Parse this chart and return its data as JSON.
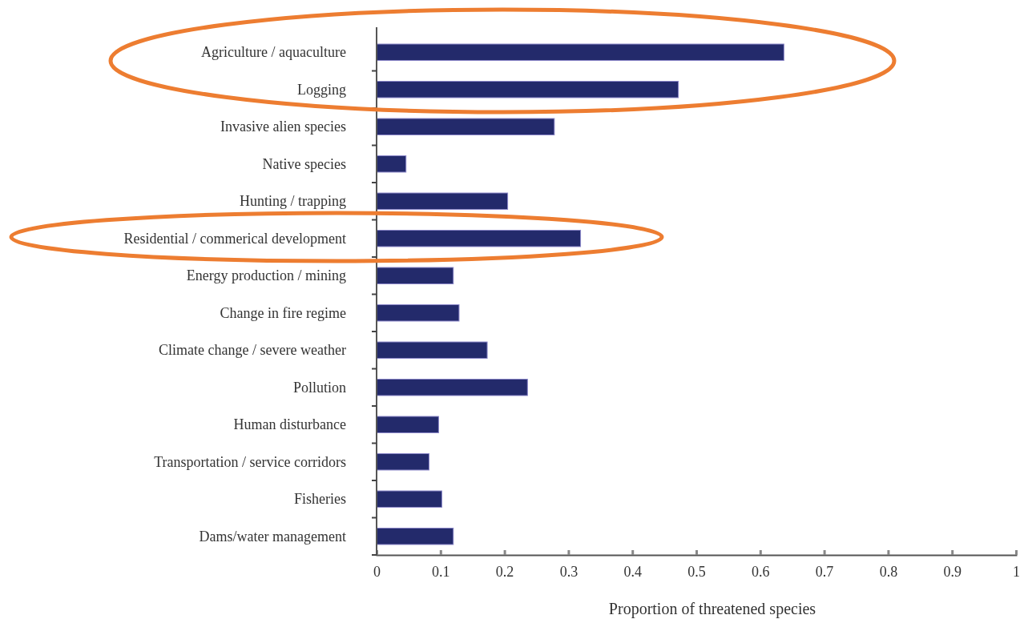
{
  "chart_data": {
    "type": "bar",
    "orientation": "horizontal",
    "xlabel": "Proportion of threatened species",
    "categories": [
      "Agriculture / aquaculture",
      "Logging",
      "Invasive alien species",
      "Native species",
      "Hunting / trapping",
      "Residential / commerical development",
      "Energy production / mining",
      "Change in fire regime",
      "Climate change / severe weather",
      "Pollution",
      "Human disturbance",
      "Transportation  / service corridors",
      "Fisheries",
      "Dams/water management"
    ],
    "values": [
      0.637,
      0.472,
      0.278,
      0.046,
      0.205,
      0.319,
      0.12,
      0.129,
      0.173,
      0.236,
      0.097,
      0.082,
      0.102,
      0.12
    ],
    "color": "#232a6b",
    "xlim": [
      0,
      1
    ],
    "xticks": [
      0,
      0.1,
      0.2,
      0.3,
      0.4,
      0.5,
      0.6,
      0.7,
      0.8,
      0.9,
      1
    ],
    "grid": false
  }
}
